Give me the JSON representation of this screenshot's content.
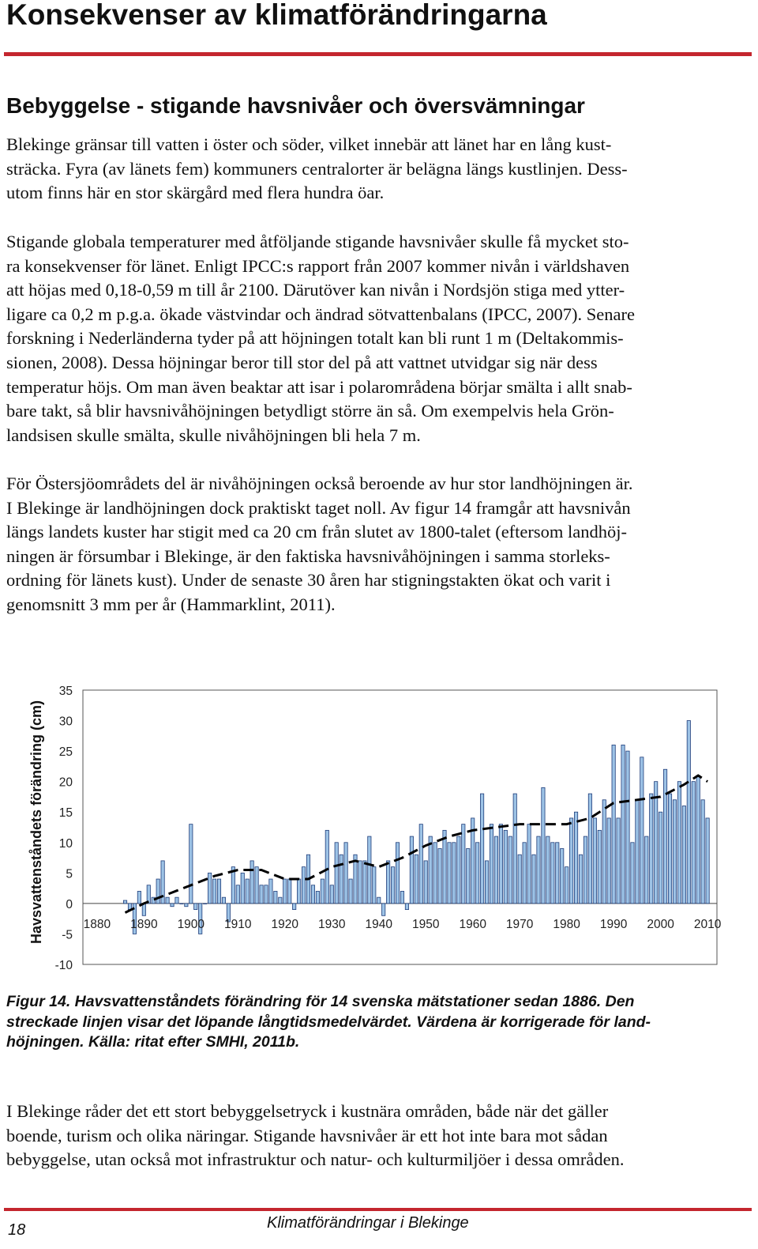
{
  "page_title": "Konsekvenser av klimatförändringarna",
  "section_heading": "Bebyggelse - stigande havsnivåer och översvämningar",
  "paragraph1": [
    "Blekinge gränsar till vatten i öster och söder, vilket innebär att länet har en lång kust-",
    "sträcka. Fyra (av länets fem) kommuners centralorter är belägna längs kustlinjen. Dess-",
    "utom finns här en stor skärgård med flera hundra öar."
  ],
  "paragraph2": [
    "Stigande globala temperaturer med åtföljande stigande havsnivåer skulle få mycket sto-",
    "ra konsekvenser för länet. Enligt IPCC:s rapport från 2007 kommer nivån i världshaven",
    "att höjas med 0,18-0,59 m till år 2100. Därutöver kan nivån i Nordsjön stiga med ytter-",
    "ligare ca 0,2 m p.g.a. ökade västvindar och ändrad sötvattenbalans (IPCC, 2007). Senare",
    "forskning i Nederländerna tyder på att höjningen totalt kan bli runt 1 m (Deltakommis-",
    "sionen, 2008). Dessa höjningar beror till stor del på att vattnet utvidgar sig när dess",
    "temperatur höjs. Om man även beaktar att isar i polarområdena börjar smälta i allt snab-",
    "bare takt, så blir havsnivåhöjningen betydligt större än så. Om exempelvis hela Grön-",
    "landsisen skulle smälta, skulle nivåhöjningen bli hela 7 m."
  ],
  "paragraph3": [
    "För Östersjöområdets del är nivåhöjningen också beroende av hur stor landhöjningen är.",
    "I Blekinge är landhöjningen dock praktiskt taget noll. Av figur 14 framgår att havsnivån",
    "längs landets kuster har stigit med ca 20 cm från slutet av 1800-talet (eftersom landhöj-",
    "ningen är försumbar i Blekinge, är den faktiska havsnivåhöjningen i samma storleks-",
    "ordning för länets kust). Under de senaste 30 åren har stigningstakten ökat och varit i",
    "genomsnitt 3 mm per år (Hammarklint, 2011)."
  ],
  "chart_data": {
    "type": "bar",
    "ylabel": "Havsvattenståndets förändring (cm)",
    "xlabel": "",
    "title": "",
    "ylim": [
      -10,
      35
    ],
    "xlim": [
      1877,
      2012
    ],
    "yticks": [
      "35",
      "30",
      "25",
      "20",
      "15",
      "10",
      "5",
      "0",
      "-5",
      "-10"
    ],
    "xticks": [
      "1880",
      "1890",
      "1900",
      "1910",
      "1920",
      "1930",
      "1940",
      "1950",
      "1960",
      "1970",
      "1980",
      "1990",
      "2000",
      "2010"
    ],
    "bar_color": "#9dc3e6",
    "x": [
      1886,
      1887,
      1888,
      1889,
      1890,
      1891,
      1892,
      1893,
      1894,
      1895,
      1896,
      1897,
      1898,
      1899,
      1900,
      1901,
      1902,
      1903,
      1904,
      1905,
      1906,
      1907,
      1908,
      1909,
      1910,
      1911,
      1912,
      1913,
      1914,
      1915,
      1916,
      1917,
      1918,
      1919,
      1920,
      1921,
      1922,
      1923,
      1924,
      1925,
      1926,
      1927,
      1928,
      1929,
      1930,
      1931,
      1932,
      1933,
      1934,
      1935,
      1936,
      1937,
      1938,
      1939,
      1940,
      1941,
      1942,
      1943,
      1944,
      1945,
      1946,
      1947,
      1948,
      1949,
      1950,
      1951,
      1952,
      1953,
      1954,
      1955,
      1956,
      1957,
      1958,
      1959,
      1960,
      1961,
      1962,
      1963,
      1964,
      1965,
      1966,
      1967,
      1968,
      1969,
      1970,
      1971,
      1972,
      1973,
      1974,
      1975,
      1976,
      1977,
      1978,
      1979,
      1980,
      1981,
      1982,
      1983,
      1984,
      1985,
      1986,
      1987,
      1988,
      1989,
      1990,
      1991,
      1992,
      1993,
      1994,
      1995,
      1996,
      1997,
      1998,
      1999,
      2000,
      2001,
      2002,
      2003,
      2004,
      2005,
      2006,
      2007,
      2008,
      2009,
      2010
    ],
    "values": [
      0.5,
      -1,
      -5,
      2,
      -2,
      3,
      1,
      4,
      7,
      1,
      -0.5,
      1,
      0,
      -0.5,
      13,
      -1,
      -5,
      0,
      5,
      4,
      4,
      1,
      -3,
      6,
      3,
      5,
      4,
      7,
      6,
      3,
      3,
      4,
      2,
      1,
      4,
      4,
      -1,
      4,
      6,
      8,
      3,
      2,
      4,
      12,
      3,
      10,
      8,
      10,
      4,
      8,
      7,
      7,
      11,
      6,
      1,
      -2,
      7,
      6,
      10,
      2,
      -1,
      11,
      8,
      13,
      7,
      11,
      10,
      9,
      12,
      10,
      10,
      11,
      13,
      9,
      14,
      10,
      18,
      7,
      13,
      11,
      13,
      12,
      11,
      18,
      8,
      10,
      13,
      8,
      11,
      19,
      11,
      10,
      10,
      9,
      6,
      14,
      15,
      8,
      11,
      18,
      14,
      12,
      17,
      14,
      26,
      14,
      26,
      25,
      10,
      17,
      24,
      11,
      18,
      20,
      15,
      22,
      18,
      17,
      20,
      16,
      30,
      20,
      21,
      17,
      14
    ],
    "trend": [
      [
        1886,
        -1.5
      ],
      [
        1890,
        0
      ],
      [
        1895,
        1.5
      ],
      [
        1900,
        3
      ],
      [
        1905,
        4.5
      ],
      [
        1910,
        5.5
      ],
      [
        1915,
        5.5
      ],
      [
        1920,
        4
      ],
      [
        1925,
        4
      ],
      [
        1930,
        6
      ],
      [
        1935,
        7
      ],
      [
        1940,
        6
      ],
      [
        1945,
        7.5
      ],
      [
        1950,
        9.5
      ],
      [
        1955,
        11
      ],
      [
        1960,
        12
      ],
      [
        1965,
        12.5
      ],
      [
        1970,
        13
      ],
      [
        1975,
        13
      ],
      [
        1980,
        13
      ],
      [
        1985,
        14
      ],
      [
        1990,
        16.5
      ],
      [
        1995,
        17
      ],
      [
        2000,
        17.5
      ],
      [
        2005,
        19.5
      ],
      [
        2008,
        21
      ],
      [
        2010,
        20
      ]
    ]
  },
  "caption": [
    "Figur 14. Havsvattenståndets förändring för 14 svenska mätstationer sedan 1886. Den",
    "streckade linjen visar det löpande långtidsmedelvärdet. Värdena är korrigerade för land-",
    "höjningen. Källa: ritat efter SMHI, 2011b."
  ],
  "paragraph4": [
    "I Blekinge råder det ett stort bebyggelsetryck i kustnära områden, både när det gäller",
    "boende, turism och olika näringar. Stigande havsnivåer är ett hot inte bara mot sådan",
    "bebyggelse, utan också mot infrastruktur och natur- och kulturmiljöer i dessa områden."
  ],
  "footer": {
    "page_number": "18",
    "title": "Klimatförändringar i Blekinge"
  },
  "colors": {
    "rule": "#c4262e",
    "bars": "#9dc3e6"
  }
}
